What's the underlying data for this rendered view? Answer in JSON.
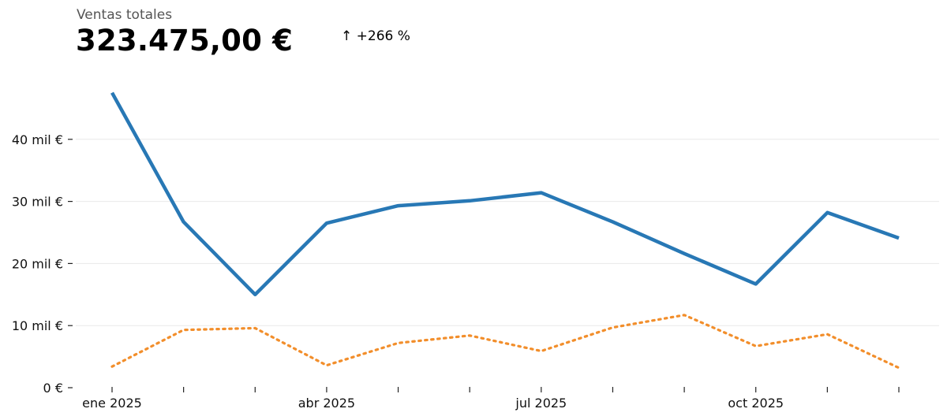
{
  "header": {
    "label": "Ventas totales",
    "total": "323.475,00 €",
    "change": "↑ +266 %"
  },
  "chart_data": {
    "type": "line",
    "title": "",
    "xlabel": "",
    "ylabel": "",
    "x": [
      "2025-01",
      "2025-02",
      "2025-03",
      "2025-04",
      "2025-05",
      "2025-06",
      "2025-07",
      "2025-08",
      "2025-09",
      "2025-10",
      "2025-11",
      "2025-12"
    ],
    "x_tick_labels": [
      "ene 2025",
      "",
      "",
      "abr 2025",
      "",
      "",
      "jul 2025",
      "",
      "",
      "oct 2025",
      "",
      ""
    ],
    "y_ticks": [
      0,
      10000,
      20000,
      30000,
      40000
    ],
    "y_tick_labels": [
      "0 €",
      "10 mil €",
      "20 mil €",
      "30 mil €",
      "40 mil €"
    ],
    "ylim": [
      0,
      49000
    ],
    "grid": true,
    "series": [
      {
        "values": [
          47500,
          26700,
          15000,
          26500,
          29300,
          30100,
          31400,
          26700,
          21600,
          16700,
          28200,
          24100
        ],
        "color": "#2878b5",
        "style": "solid"
      },
      {
        "values": [
          3400,
          9300,
          9600,
          3600,
          7200,
          8400,
          5900,
          9700,
          11700,
          6700,
          8600,
          3200
        ],
        "color": "#f28e2b",
        "style": "dotted"
      }
    ]
  }
}
